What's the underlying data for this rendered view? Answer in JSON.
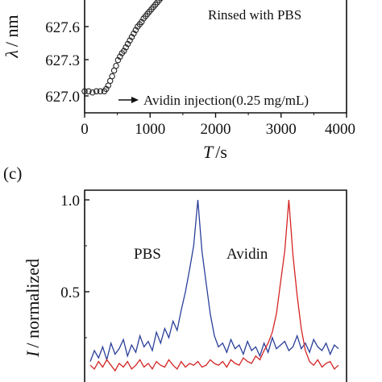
{
  "chart_data": [
    {
      "panel": "",
      "type": "scatter",
      "ylabel_symbol": "λ",
      "ylabel_unit": "/ nm",
      "xlabel_symbol": "T",
      "xlabel_unit": "/s",
      "xlim": [
        0,
        4000
      ],
      "ylim": [
        626.95,
        627.95
      ],
      "x_ticks": [
        0,
        1000,
        2000,
        3000,
        4000
      ],
      "y_ticks": [
        627.0,
        627.3,
        627.6
      ],
      "y_tick_labels": [
        "627.0",
        "627.3",
        "627.6"
      ],
      "annotations": {
        "rinsed": "Rinsed with PBS",
        "injection": "Avidin injection(0.25 mg/mL)"
      },
      "marker": "open-circle",
      "x": [
        0,
        60,
        120,
        180,
        240,
        300,
        330,
        360,
        390,
        420,
        450,
        480,
        510,
        540,
        570,
        600,
        630,
        660,
        690,
        720,
        750,
        780,
        810,
        840,
        870,
        900,
        930,
        960,
        990,
        1020,
        1050,
        1080,
        1110,
        1140,
        1170,
        1200,
        1230,
        1260,
        1290,
        1320,
        1350
      ],
      "y": [
        627.04,
        627.04,
        627.03,
        627.04,
        627.04,
        627.04,
        627.06,
        627.09,
        627.13,
        627.17,
        627.22,
        627.26,
        627.31,
        627.34,
        627.37,
        627.39,
        627.42,
        627.45,
        627.48,
        627.51,
        627.54,
        627.57,
        627.6,
        627.62,
        627.64,
        627.67,
        627.69,
        627.71,
        627.73,
        627.75,
        627.77,
        627.79,
        627.81,
        627.83,
        627.85,
        627.87,
        627.88,
        627.9,
        627.91,
        627.93,
        627.94
      ]
    },
    {
      "panel": "(c)",
      "type": "line",
      "ylabel_symbol": "I",
      "ylabel_unit": "/ normalized",
      "ylim": [
        0.0,
        1.05
      ],
      "y_ticks": [
        0.5,
        1.0
      ],
      "y_tick_labels": [
        "0.5",
        "1.0"
      ],
      "x": [
        0,
        5,
        10,
        15,
        20,
        25,
        30,
        35,
        40,
        45,
        50,
        55,
        60,
        65,
        70,
        75,
        80,
        85,
        90,
        95,
        100,
        105,
        110,
        115,
        120,
        125,
        130,
        135,
        140,
        145,
        150,
        155,
        160,
        165,
        170,
        175,
        180,
        185,
        190,
        195,
        200,
        205,
        210,
        215,
        220,
        225,
        230,
        235,
        240,
        245,
        250,
        255,
        260,
        265,
        270,
        275,
        280,
        285,
        290,
        295,
        300
      ],
      "series": [
        {
          "name": "PBS",
          "color": "#2a3f9a",
          "values": [
            0.12,
            0.18,
            0.14,
            0.2,
            0.13,
            0.22,
            0.16,
            0.19,
            0.24,
            0.15,
            0.21,
            0.17,
            0.26,
            0.2,
            0.23,
            0.18,
            0.28,
            0.22,
            0.3,
            0.25,
            0.34,
            0.29,
            0.4,
            0.5,
            0.62,
            0.75,
            1.0,
            0.72,
            0.55,
            0.38,
            0.26,
            0.2,
            0.22,
            0.17,
            0.24,
            0.19,
            0.21,
            0.16,
            0.23,
            0.18,
            0.2,
            0.15,
            0.22,
            0.17,
            0.25,
            0.19,
            0.21,
            0.23,
            0.18,
            0.2,
            0.26,
            0.19,
            0.22,
            0.17,
            0.24,
            0.2,
            0.18,
            0.22,
            0.16,
            0.21,
            0.19
          ]
        },
        {
          "name": "Avidin",
          "color": "#d42424",
          "values": [
            0.1,
            0.08,
            0.12,
            0.09,
            0.13,
            0.1,
            0.07,
            0.11,
            0.09,
            0.12,
            0.08,
            0.1,
            0.13,
            0.09,
            0.11,
            0.08,
            0.12,
            0.1,
            0.09,
            0.13,
            0.1,
            0.08,
            0.12,
            0.09,
            0.11,
            0.1,
            0.12,
            0.09,
            0.1,
            0.13,
            0.11,
            0.1,
            0.12,
            0.09,
            0.13,
            0.11,
            0.1,
            0.14,
            0.12,
            0.11,
            0.15,
            0.13,
            0.18,
            0.22,
            0.28,
            0.38,
            0.55,
            0.72,
            1.0,
            0.7,
            0.48,
            0.3,
            0.18,
            0.12,
            0.1,
            0.13,
            0.09,
            0.11,
            0.12,
            0.08,
            0.1
          ]
        }
      ]
    }
  ]
}
